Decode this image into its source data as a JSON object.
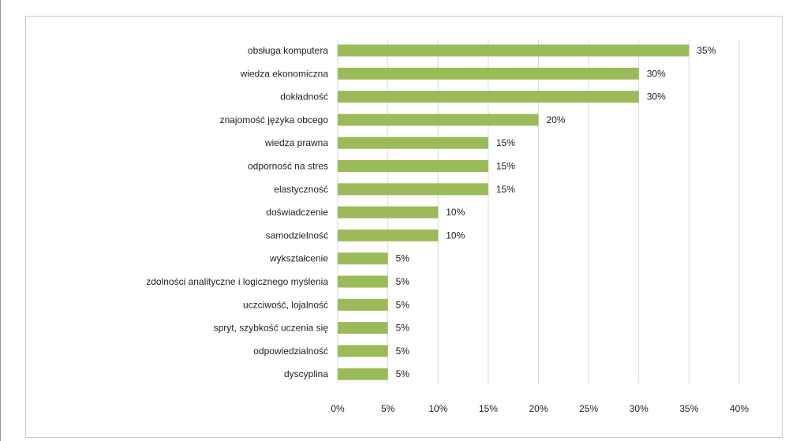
{
  "chart_data": {
    "type": "bar",
    "orientation": "horizontal",
    "categories": [
      "obsługa komputera",
      "wiedza ekonomiczna",
      "dokładność",
      "znajomość języka obcego",
      "wiedza prawna",
      "odporność na stres",
      "elastyczność",
      "doświadczenie",
      "samodzielność",
      "wykształcenie",
      "zdolności analityczne i logicznego myślenia",
      "uczciwość, lojalność",
      "spryt, szybkość uczenia się",
      "odpowiedzialność",
      "dyscyplina"
    ],
    "values": [
      35,
      30,
      30,
      20,
      15,
      15,
      15,
      10,
      10,
      5,
      5,
      5,
      5,
      5,
      5
    ],
    "value_labels": [
      "35%",
      "30%",
      "30%",
      "20%",
      "15%",
      "15%",
      "15%",
      "10%",
      "10%",
      "5%",
      "5%",
      "5%",
      "5%",
      "5%",
      "5%"
    ],
    "xticks": [
      "0%",
      "5%",
      "10%",
      "15%",
      "20%",
      "25%",
      "30%",
      "35%",
      "40%"
    ],
    "xlim": [
      0,
      40
    ],
    "grid": true,
    "bar_color": "#9bbb59"
  }
}
